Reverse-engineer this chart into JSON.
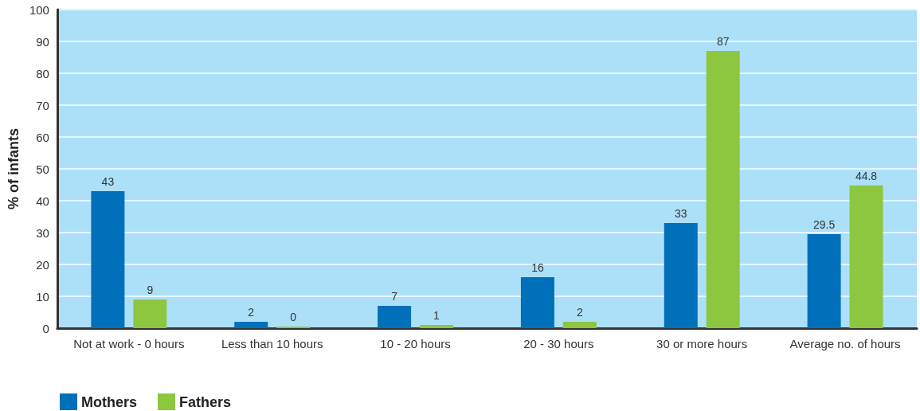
{
  "chart_data": {
    "type": "bar",
    "ylabel": "% of infants",
    "categories": [
      "Not at work - 0 hours",
      "Less than 10 hours",
      "10 - 20 hours",
      "20 - 30 hours",
      "30 or more hours",
      "Average no. of hours"
    ],
    "series": [
      {
        "name": "Mothers",
        "color": "#0070bb",
        "values": [
          43,
          2,
          7,
          16,
          33,
          29.5
        ]
      },
      {
        "name": "Fathers",
        "color": "#8dc63f",
        "values": [
          9,
          0,
          1,
          2,
          87,
          44.8
        ]
      }
    ],
    "ylim": [
      0,
      100
    ],
    "yticks": [
      0,
      10,
      20,
      30,
      40,
      50,
      60,
      70,
      80,
      90,
      100
    ],
    "grid": "y",
    "legend": "bottom left",
    "data_labels": true
  }
}
